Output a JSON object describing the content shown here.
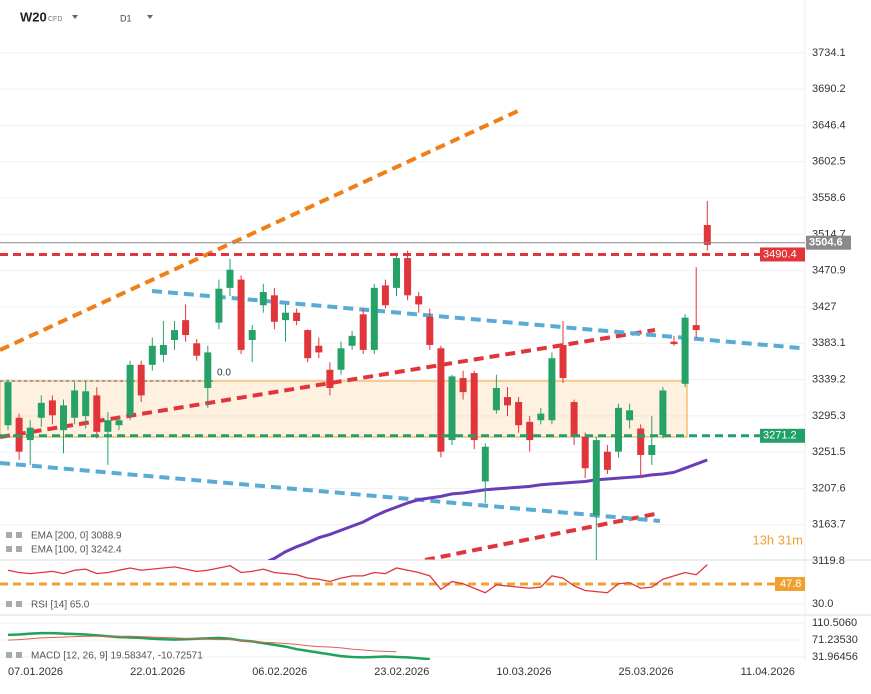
{
  "instrument": "W20",
  "instrument_type": "CFD",
  "timeframe": "D1",
  "countdown": "13h 31m",
  "chart_data": {
    "type": "candlestick",
    "categories": [
      "07.01.2026",
      null,
      null,
      null,
      null,
      null,
      null,
      null,
      null,
      null,
      null,
      "22.01.2026",
      null,
      null,
      null,
      null,
      null,
      null,
      null,
      null,
      null,
      null,
      "06.02.2026",
      null,
      null,
      null,
      null,
      null,
      null,
      null,
      null,
      null,
      null,
      "23.02.2026",
      null,
      null,
      null,
      null,
      null,
      null,
      null,
      null,
      null,
      null,
      "10.03.2026",
      null,
      null,
      null,
      null,
      null,
      null,
      null,
      null,
      null,
      null,
      "25.03.2026",
      null,
      null,
      null,
      null,
      null,
      null,
      null,
      null,
      null,
      null,
      "11.04.2026"
    ],
    "open": [
      3284,
      3293,
      3266,
      3293,
      3314,
      3278,
      3293,
      3295,
      3320,
      3276,
      3284,
      3296,
      3357,
      3357,
      3369,
      3387,
      3411,
      3383,
      3329,
      3408,
      3450,
      3460,
      3387,
      3429,
      3441,
      3411,
      3420,
      3399,
      3380,
      3351,
      3351,
      3380,
      3418,
      3375,
      3453,
      3450,
      3486,
      3440,
      3415,
      3377,
      3266,
      3341,
      3347,
      3216,
      3302,
      3318,
      3312,
      3288,
      3290,
      3290,
      3381,
      3312,
      3270,
      3175,
      3252,
      3252,
      3290,
      3280,
      3248,
      3272,
      3385,
      3334,
      3405,
      3526,
      null,
      null,
      null
    ],
    "high": [
      3339,
      3298,
      3290,
      3320,
      3320,
      3315,
      3336,
      3338,
      3330,
      3300,
      3295,
      3362,
      3362,
      3390,
      3410,
      3410,
      3430,
      3388,
      3380,
      3460,
      3485,
      3465,
      3405,
      3455,
      3450,
      3430,
      3425,
      3400,
      3390,
      3360,
      3385,
      3398,
      3425,
      3455,
      3460,
      3492,
      3495,
      3445,
      3425,
      3380,
      3345,
      3350,
      3350,
      3262,
      3345,
      3330,
      3318,
      3295,
      3305,
      3372,
      3410,
      3315,
      3275,
      3270,
      3260,
      3310,
      3310,
      3285,
      3295,
      3330,
      3392,
      3418,
      3475,
      3555,
      null,
      null,
      null
    ],
    "low": [
      3278,
      3242,
      3236,
      3282,
      3285,
      3250,
      3285,
      3280,
      3268,
      3236,
      3278,
      3290,
      3312,
      3350,
      3360,
      3375,
      3385,
      3362,
      3305,
      3400,
      3440,
      3370,
      3360,
      3420,
      3400,
      3385,
      3405,
      3360,
      3365,
      3320,
      3345,
      3375,
      3370,
      3370,
      3425,
      3440,
      3435,
      3420,
      3375,
      3245,
      3260,
      3315,
      3255,
      3190,
      3298,
      3295,
      3275,
      3252,
      3285,
      3285,
      3335,
      3260,
      3220,
      3118,
      3225,
      3245,
      3280,
      3220,
      3236,
      3268,
      3380,
      3330,
      3390,
      3495,
      null,
      null,
      null
    ],
    "close": [
      3336,
      3252,
      3281,
      3311,
      3296,
      3308,
      3326,
      3325,
      3276,
      3290,
      3290,
      3357,
      3320,
      3380,
      3381,
      3399,
      3393,
      3368,
      3372,
      3449,
      3472,
      3375,
      3399,
      3445,
      3409,
      3420,
      3410,
      3365,
      3372,
      3329,
      3377,
      3392,
      3375,
      3450,
      3429,
      3486,
      3441,
      3430,
      3381,
      3252,
      3343,
      3324,
      3266,
      3258,
      3329,
      3308,
      3284,
      3266,
      3298,
      3365,
      3341,
      3270,
      3232,
      3266,
      3230,
      3305,
      3302,
      3248,
      3260,
      3326,
      3382,
      3414,
      3399,
      3502,
      null,
      null,
      null
    ],
    "up_color": "#26a269",
    "down_color": "#e0363b",
    "ylim": [
      3115,
      3798
    ],
    "yticks": [
      3734.1,
      3690.2,
      3646.4,
      3602.5,
      3558.6,
      3514.7,
      3470.9,
      3427.0,
      3383.1,
      3339.2,
      3295.3,
      3251.5,
      3207.6,
      3163.7,
      3119.8
    ],
    "grid": true,
    "indicator_labels": [
      "EMA [200, 0] 3088.9"
    ],
    "series": [
      {
        "name": "EMA [100, 0] 3242.4",
        "color": "#6a3db8",
        "values": [
          null,
          null,
          null,
          null,
          null,
          null,
          null,
          null,
          null,
          null,
          null,
          null,
          null,
          null,
          null,
          null,
          null,
          null,
          null,
          null,
          null,
          null,
          null,
          3117,
          3123,
          3131,
          3137,
          3142,
          3148,
          3152,
          3157,
          3162,
          3167,
          3174,
          3180,
          3185,
          3190,
          3194,
          3196,
          3198,
          3201,
          3202,
          3204,
          3206,
          3207,
          3208,
          3209,
          3210,
          3212,
          3213,
          3214,
          3215,
          3216,
          3218,
          3219,
          3220,
          3221,
          3222,
          3224,
          3225,
          3227,
          3232,
          3237,
          3242,
          null,
          null,
          null
        ]
      }
    ],
    "price_lines": [
      {
        "value": 3504.6,
        "color": "#8a8a8a",
        "style": "solid"
      },
      {
        "value": 3490.4,
        "color": "#e0363b",
        "style": "dashed"
      },
      {
        "value": 3271.2,
        "color": "#22a06b",
        "style": "dashed"
      }
    ],
    "annotation": "0.0"
  },
  "rsi": {
    "label": "RSI [14] 65.0",
    "color": "#e0363b",
    "ylim": [
      20.2,
      69.1
    ],
    "yticks": [
      {
        "value": 30,
        "label": "30.0"
      }
    ],
    "level": 47.8,
    "level_color": "#f0a030",
    "values": [
      60,
      58,
      57,
      58,
      59,
      57,
      60,
      61,
      57,
      58,
      60,
      62,
      60,
      61,
      62,
      63,
      61,
      59,
      60,
      62,
      64,
      58,
      59,
      61,
      58,
      57,
      56,
      53,
      52,
      50,
      53,
      55,
      55,
      58,
      57,
      62,
      60,
      58,
      55,
      43,
      50,
      48,
      44,
      40,
      47,
      46,
      45,
      44,
      45,
      55,
      53,
      46,
      42,
      41,
      40,
      48,
      49,
      44,
      45,
      52,
      55,
      58,
      56,
      65,
      null,
      null,
      null
    ]
  },
  "macd": {
    "label": "MACD [12, 26, 9] 19.58347, -10.72571",
    "ylim": [
      25,
      129
    ],
    "yticks": [
      {
        "value": 110.506,
        "label": "110.5060"
      },
      {
        "value": 71.2353,
        "label": "71.23530"
      },
      31.96456
    ],
    "series": [
      {
        "color": "#1fa35a",
        "values": [
          83,
          84,
          86,
          87,
          87,
          86,
          85,
          84,
          82,
          80,
          78,
          77,
          76,
          74,
          73,
          72,
          73,
          74,
          75,
          76,
          74,
          70,
          68,
          64,
          60,
          56,
          50,
          46,
          42,
          38,
          34,
          32,
          31,
          32,
          33,
          32,
          31,
          29,
          27,
          null,
          null,
          null,
          null,
          null,
          null,
          null,
          null,
          null,
          null,
          null,
          null,
          null,
          null,
          null,
          null,
          null,
          null,
          null,
          null,
          null,
          null,
          null,
          null,
          null,
          null,
          null,
          null
        ]
      },
      {
        "color": "#e06050",
        "values": [
          71,
          72,
          74,
          76,
          77,
          78,
          79,
          80,
          80,
          80,
          80,
          80,
          79,
          78,
          77,
          76,
          75,
          74,
          73,
          72,
          72,
          70,
          68,
          66,
          65,
          63,
          61,
          58,
          56,
          55,
          53,
          50,
          48,
          46,
          45,
          44,
          null,
          null,
          null,
          null,
          null,
          null,
          null,
          null,
          null,
          null,
          null,
          null,
          null,
          null,
          null,
          null,
          null,
          null,
          null,
          null,
          null,
          null,
          null,
          null,
          null,
          null,
          null,
          null,
          null,
          null,
          null
        ]
      }
    ]
  }
}
